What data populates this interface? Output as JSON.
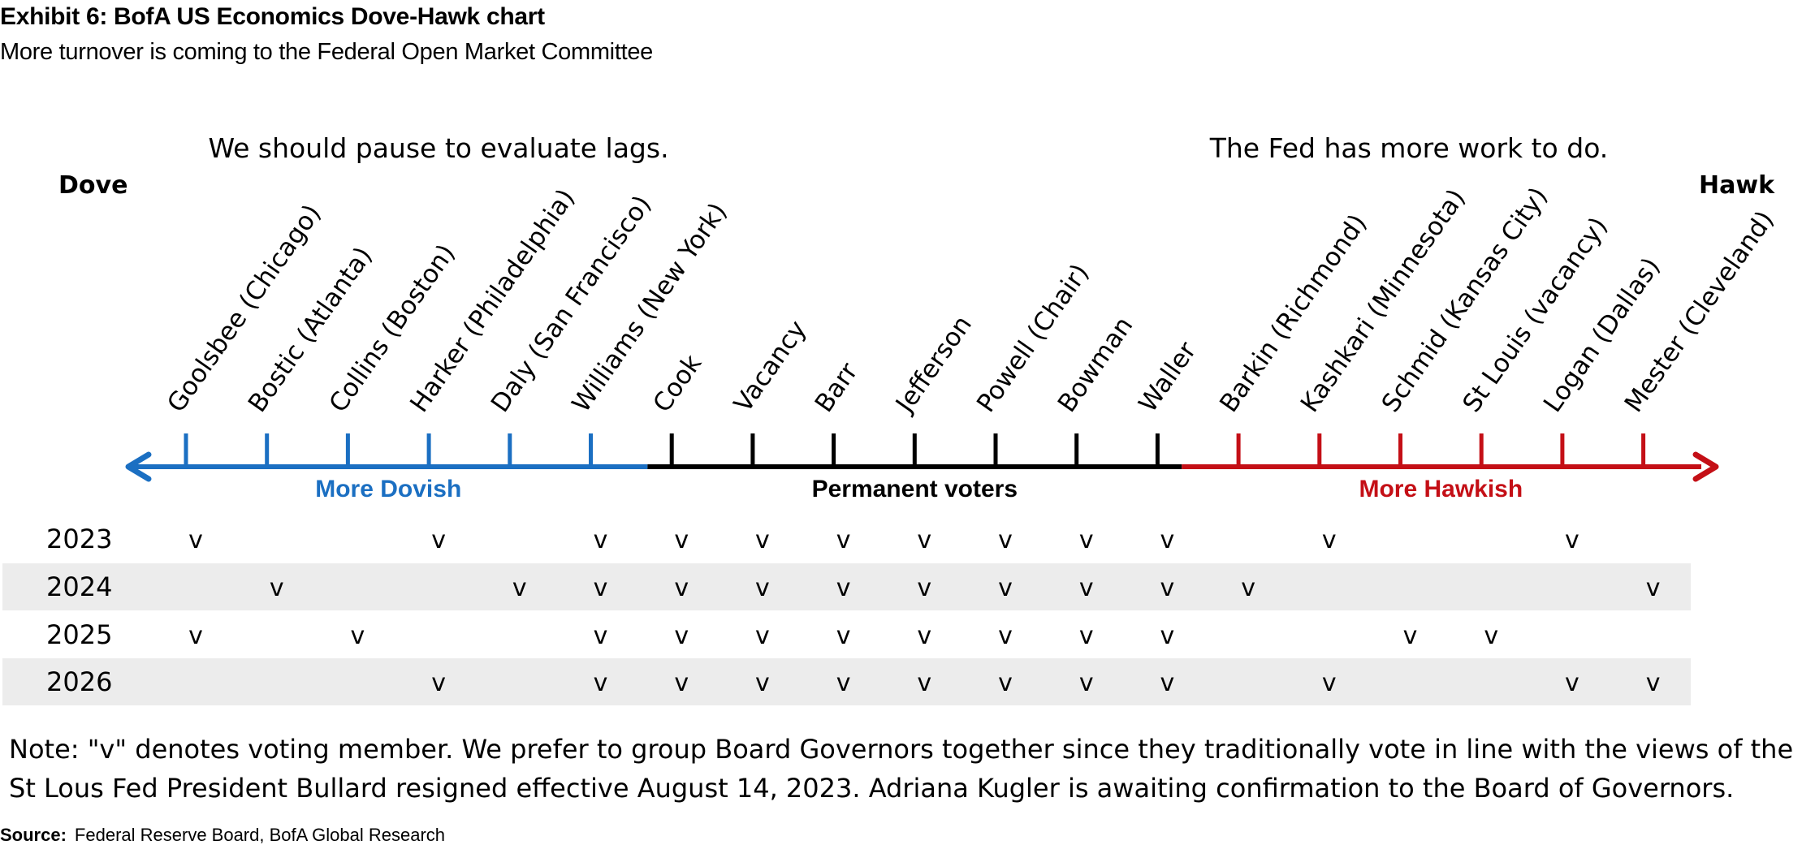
{
  "title": "Exhibit 6: BofA US Economics Dove-Hawk chart",
  "subtitle": "More turnover is coming to the Federal Open Market Committee",
  "left_header": "We should pause to evaluate lags.",
  "right_header": "The Fed has more work to do.",
  "left_end_label": "Dove",
  "right_end_label": "Hawk",
  "groups": [
    {
      "label": "More Dovish",
      "color": "#1b6fc2"
    },
    {
      "label": "Permanent voters",
      "color": "#000000"
    },
    {
      "label": "More Hawkish",
      "color": "#c40f16"
    }
  ],
  "members": [
    {
      "name": "Goolsbee (Chicago)",
      "group": 0
    },
    {
      "name": "Bostic (Atlanta)",
      "group": 0
    },
    {
      "name": "Collins (Boston)",
      "group": 0
    },
    {
      "name": "Harker (Philadelphia)",
      "group": 0
    },
    {
      "name": "Daly (San Francisco)",
      "group": 0
    },
    {
      "name": "Williams (New York)",
      "group": 0
    },
    {
      "name": "Cook",
      "group": 1
    },
    {
      "name": "Vacancy",
      "group": 1
    },
    {
      "name": "Barr",
      "group": 1
    },
    {
      "name": "Jefferson",
      "group": 1
    },
    {
      "name": "Powell (Chair)",
      "group": 1
    },
    {
      "name": "Bowman",
      "group": 1
    },
    {
      "name": "Waller",
      "group": 1
    },
    {
      "name": "Barkin (Richmond)",
      "group": 2
    },
    {
      "name": "Kashkari (Minnesota)",
      "group": 2
    },
    {
      "name": "Schmid (Kansas City)",
      "group": 2
    },
    {
      "name": "St Louis (vacancy)",
      "group": 2
    },
    {
      "name": "Logan (Dallas)",
      "group": 2
    },
    {
      "name": "Mester (Cleveland)",
      "group": 2
    }
  ],
  "vote_mark": "v",
  "years": [
    {
      "year": "2023",
      "votes": [
        1,
        0,
        0,
        1,
        0,
        1,
        1,
        1,
        1,
        1,
        1,
        1,
        1,
        0,
        1,
        0,
        0,
        1,
        0
      ]
    },
    {
      "year": "2024",
      "votes": [
        0,
        1,
        0,
        0,
        1,
        1,
        1,
        1,
        1,
        1,
        1,
        1,
        1,
        1,
        0,
        0,
        0,
        0,
        1
      ]
    },
    {
      "year": "2025",
      "votes": [
        1,
        0,
        1,
        0,
        0,
        1,
        1,
        1,
        1,
        1,
        1,
        1,
        1,
        0,
        0,
        1,
        1,
        0,
        0
      ]
    },
    {
      "year": "2026",
      "votes": [
        0,
        0,
        0,
        1,
        0,
        1,
        1,
        1,
        1,
        1,
        1,
        1,
        1,
        0,
        1,
        0,
        0,
        1,
        1
      ]
    }
  ],
  "row_shading": "#ececec",
  "notes": [
    "Note: \"v\" denotes voting member. We prefer to group Board Governors together since they traditionally vote in line with the views of the Chair.",
    "St Lous Fed President Bullard resigned effective August 14, 2023. Adriana Kugler is awaiting confirmation to the Board of Governors."
  ],
  "source_label": "Source:",
  "source_text": "Federal Reserve Board, BofA Global Research"
}
